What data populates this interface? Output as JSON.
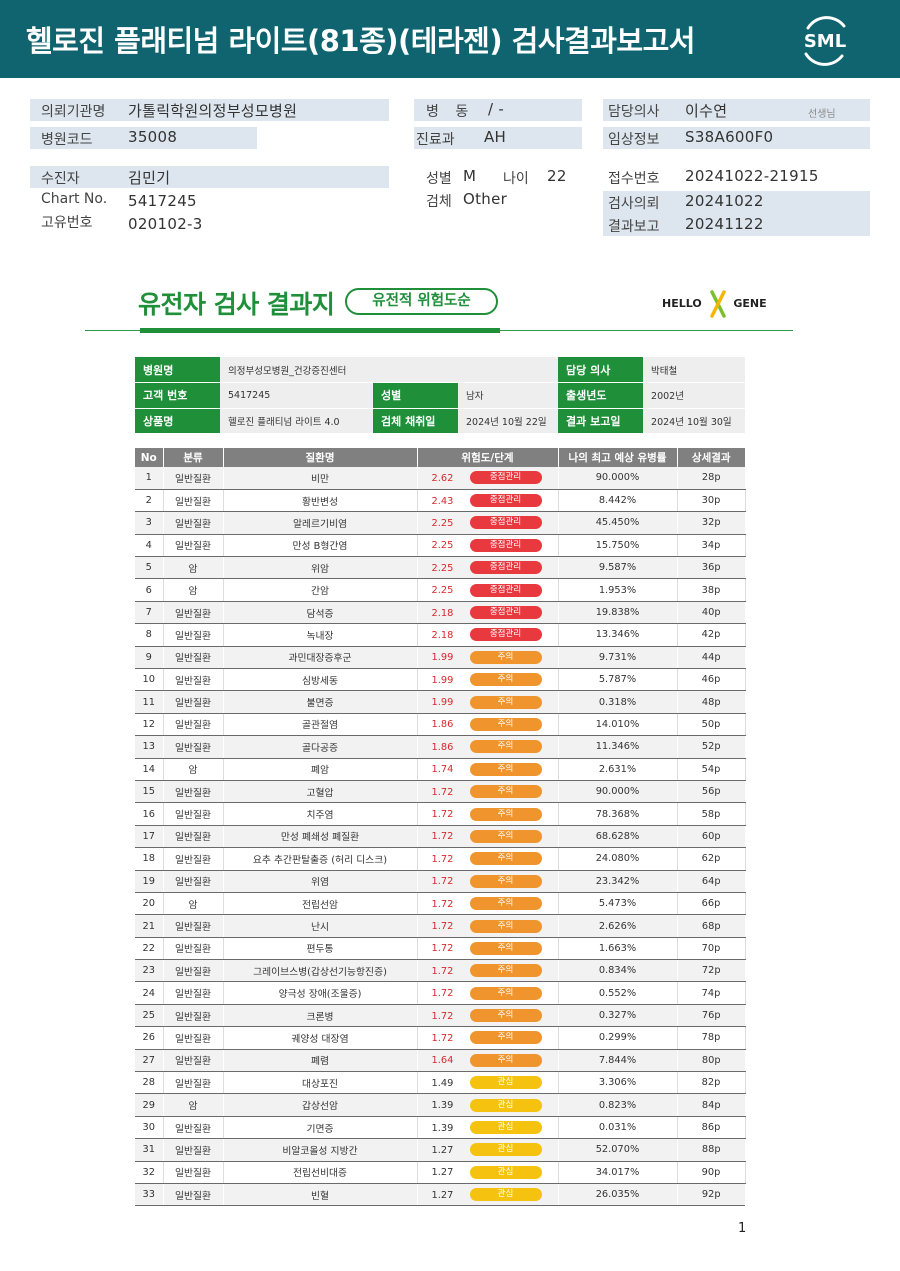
{
  "header": {
    "title": "헬로진 플래티넘 라이트(81종)(테라젠) 검사결과보고서",
    "logo": "SML"
  },
  "patient": {
    "institution_label": "의뢰기관명",
    "institution": "가톨릭학원의정부성모병원",
    "hospital_code_label": "병원코드",
    "hospital_code": "35008",
    "ward_label": "병 동",
    "ward": "/ -",
    "dept_label": "진료과",
    "dept": "AH",
    "doctor_label": "담당의사",
    "doctor": "이수연",
    "doctor_suffix": "선생님",
    "clinical_label": "임상정보",
    "clinical": "S38A600F0",
    "name_label": "수진자",
    "name": "김민기",
    "chart_label": "Chart No.",
    "chart": "5417245",
    "uid_label": "고유번호",
    "uid": "020102-3",
    "sex_label": "성별",
    "sex": "M",
    "age_label": "나이",
    "age": "22",
    "specimen_label": "검체",
    "specimen": "Other",
    "receipt_label": "접수번호",
    "receipt": "20241022-21915",
    "request_label": "검사의뢰",
    "request": "20241022",
    "report_label": "결과보고",
    "report": "20241122"
  },
  "report": {
    "title": "유전자 검사 결과지",
    "pill": "유전적 위험도순",
    "logo_left": "HELLO",
    "logo_right": "GENE"
  },
  "summary": {
    "hospital_label": "병원명",
    "hospital": "의정부성모병원_건강증진센터",
    "doctor_label": "담당 의사",
    "doctor": "박태철",
    "customer_label": "고객 번호",
    "customer": "5417245",
    "sex_label": "성별",
    "sex": "남자",
    "birth_label": "출생년도",
    "birth": "2002년",
    "product_label": "상품명",
    "product": "헬로진 플래티넘 라이트 4.0",
    "collect_label": "검체 채취일",
    "collect": "2024년 10월 22일",
    "report_label": "결과 보고일",
    "report": "2024년 10월 30일"
  },
  "results": {
    "columns": [
      "No",
      "분류",
      "질환명",
      "위험도/단계",
      "나의 최고 예상 유병률",
      "상세결과"
    ],
    "level_colors": {
      "중점관리": "#e8393f",
      "주의": "#f0952e",
      "관심": "#f4c20f"
    },
    "score_colors": {
      "중점관리": "#d7282e",
      "주의": "#d7282e",
      "관심": "#333333"
    },
    "rows": [
      {
        "no": "1",
        "cat": "일반질환",
        "name": "비만",
        "score": "2.62",
        "level": "중점관리",
        "rate": "90.000%",
        "page": "28p"
      },
      {
        "no": "2",
        "cat": "일반질환",
        "name": "황반변성",
        "score": "2.43",
        "level": "중점관리",
        "rate": "8.442%",
        "page": "30p"
      },
      {
        "no": "3",
        "cat": "일반질환",
        "name": "알레르기비염",
        "score": "2.25",
        "level": "중점관리",
        "rate": "45.450%",
        "page": "32p"
      },
      {
        "no": "4",
        "cat": "일반질환",
        "name": "만성 B형간염",
        "score": "2.25",
        "level": "중점관리",
        "rate": "15.750%",
        "page": "34p"
      },
      {
        "no": "5",
        "cat": "암",
        "name": "위암",
        "score": "2.25",
        "level": "중점관리",
        "rate": "9.587%",
        "page": "36p"
      },
      {
        "no": "6",
        "cat": "암",
        "name": "간암",
        "score": "2.25",
        "level": "중점관리",
        "rate": "1.953%",
        "page": "38p"
      },
      {
        "no": "7",
        "cat": "일반질환",
        "name": "담석증",
        "score": "2.18",
        "level": "중점관리",
        "rate": "19.838%",
        "page": "40p"
      },
      {
        "no": "8",
        "cat": "일반질환",
        "name": "녹내장",
        "score": "2.18",
        "level": "중점관리",
        "rate": "13.346%",
        "page": "42p"
      },
      {
        "no": "9",
        "cat": "일반질환",
        "name": "과민대장증후군",
        "score": "1.99",
        "level": "주의",
        "rate": "9.731%",
        "page": "44p"
      },
      {
        "no": "10",
        "cat": "일반질환",
        "name": "심방세동",
        "score": "1.99",
        "level": "주의",
        "rate": "5.787%",
        "page": "46p"
      },
      {
        "no": "11",
        "cat": "일반질환",
        "name": "불면증",
        "score": "1.99",
        "level": "주의",
        "rate": "0.318%",
        "page": "48p"
      },
      {
        "no": "12",
        "cat": "일반질환",
        "name": "골관절염",
        "score": "1.86",
        "level": "주의",
        "rate": "14.010%",
        "page": "50p"
      },
      {
        "no": "13",
        "cat": "일반질환",
        "name": "골다공증",
        "score": "1.86",
        "level": "주의",
        "rate": "11.346%",
        "page": "52p"
      },
      {
        "no": "14",
        "cat": "암",
        "name": "폐암",
        "score": "1.74",
        "level": "주의",
        "rate": "2.631%",
        "page": "54p"
      },
      {
        "no": "15",
        "cat": "일반질환",
        "name": "고혈압",
        "score": "1.72",
        "level": "주의",
        "rate": "90.000%",
        "page": "56p"
      },
      {
        "no": "16",
        "cat": "일반질환",
        "name": "치주염",
        "score": "1.72",
        "level": "주의",
        "rate": "78.368%",
        "page": "58p"
      },
      {
        "no": "17",
        "cat": "일반질환",
        "name": "만성 폐쇄성 폐질환",
        "score": "1.72",
        "level": "주의",
        "rate": "68.628%",
        "page": "60p"
      },
      {
        "no": "18",
        "cat": "일반질환",
        "name": "요추 추간판탈출증 (허리 디스크)",
        "score": "1.72",
        "level": "주의",
        "rate": "24.080%",
        "page": "62p"
      },
      {
        "no": "19",
        "cat": "일반질환",
        "name": "위염",
        "score": "1.72",
        "level": "주의",
        "rate": "23.342%",
        "page": "64p"
      },
      {
        "no": "20",
        "cat": "암",
        "name": "전립선암",
        "score": "1.72",
        "level": "주의",
        "rate": "5.473%",
        "page": "66p"
      },
      {
        "no": "21",
        "cat": "일반질환",
        "name": "난시",
        "score": "1.72",
        "level": "주의",
        "rate": "2.626%",
        "page": "68p"
      },
      {
        "no": "22",
        "cat": "일반질환",
        "name": "편두통",
        "score": "1.72",
        "level": "주의",
        "rate": "1.663%",
        "page": "70p"
      },
      {
        "no": "23",
        "cat": "일반질환",
        "name": "그레이브스병(갑상선기능항진증)",
        "score": "1.72",
        "level": "주의",
        "rate": "0.834%",
        "page": "72p"
      },
      {
        "no": "24",
        "cat": "일반질환",
        "name": "양극성 장애(조울증)",
        "score": "1.72",
        "level": "주의",
        "rate": "0.552%",
        "page": "74p"
      },
      {
        "no": "25",
        "cat": "일반질환",
        "name": "크론병",
        "score": "1.72",
        "level": "주의",
        "rate": "0.327%",
        "page": "76p"
      },
      {
        "no": "26",
        "cat": "일반질환",
        "name": "궤양성 대장염",
        "score": "1.72",
        "level": "주의",
        "rate": "0.299%",
        "page": "78p"
      },
      {
        "no": "27",
        "cat": "일반질환",
        "name": "폐렴",
        "score": "1.64",
        "level": "주의",
        "rate": "7.844%",
        "page": "80p"
      },
      {
        "no": "28",
        "cat": "일반질환",
        "name": "대상포진",
        "score": "1.49",
        "level": "관심",
        "rate": "3.306%",
        "page": "82p"
      },
      {
        "no": "29",
        "cat": "암",
        "name": "갑상선암",
        "score": "1.39",
        "level": "관심",
        "rate": "0.823%",
        "page": "84p"
      },
      {
        "no": "30",
        "cat": "일반질환",
        "name": "기면증",
        "score": "1.39",
        "level": "관심",
        "rate": "0.031%",
        "page": "86p"
      },
      {
        "no": "31",
        "cat": "일반질환",
        "name": "비알코올성 지방간",
        "score": "1.27",
        "level": "관심",
        "rate": "52.070%",
        "page": "88p"
      },
      {
        "no": "32",
        "cat": "일반질환",
        "name": "전립선비대증",
        "score": "1.27",
        "level": "관심",
        "rate": "34.017%",
        "page": "90p"
      },
      {
        "no": "33",
        "cat": "일반질환",
        "name": "빈혈",
        "score": "1.27",
        "level": "관심",
        "rate": "26.035%",
        "page": "92p"
      }
    ]
  },
  "page_number": "1"
}
